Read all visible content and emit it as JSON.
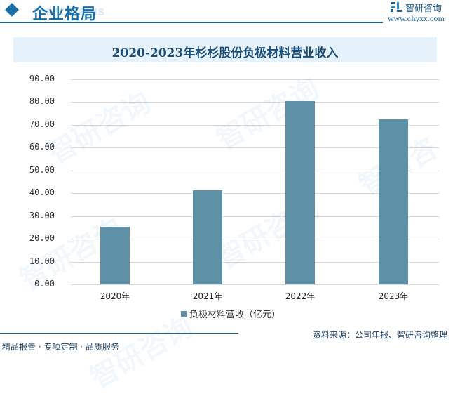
{
  "header": {
    "section_title": "企业格局",
    "ghost_text": "ment status",
    "logo_name": "智研咨询",
    "logo_url": "www.chyxx.com"
  },
  "chart_data": {
    "type": "bar",
    "title": "2020-2023年杉杉股份负极材料营业收入",
    "categories": [
      "2020年",
      "2021年",
      "2022年",
      "2023年"
    ],
    "series": [
      {
        "name": "负极材料营收（亿元）",
        "values": [
          25.3,
          41.3,
          80.5,
          72.4
        ],
        "color": "#5e90a6"
      }
    ],
    "xlabel": "",
    "ylabel": "",
    "ylim": [
      0,
      90
    ],
    "yticks": [
      "0.00",
      "10.00",
      "20.00",
      "30.00",
      "40.00",
      "50.00",
      "60.00",
      "70.00",
      "80.00",
      "90.00"
    ],
    "grid": true,
    "legend_position": "bottom"
  },
  "footer": {
    "source": "资料来源：公司年报、智研咨询整理",
    "slogan": "精品报告 · 专项定制 · 品质服务"
  },
  "watermark": "智研咨询"
}
